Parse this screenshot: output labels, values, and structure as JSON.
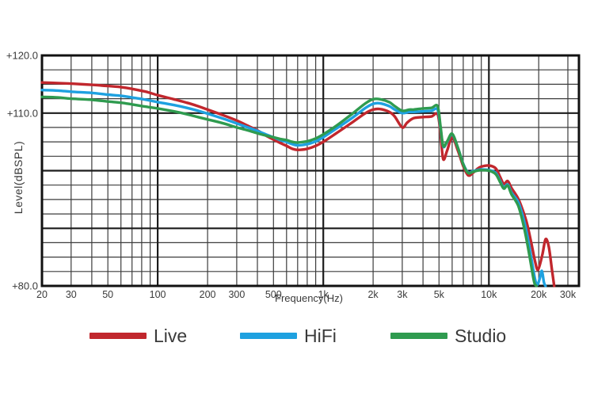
{
  "chart_data": {
    "type": "line",
    "x_scale": "log",
    "title": "",
    "xlabel": "Frequency(Hz)",
    "ylabel": "Level(dBSPL)",
    "xlim": [
      20,
      35000
    ],
    "ylim": [
      80,
      120
    ],
    "y_minor_step": 2.5,
    "y_major_lines": [
      90,
      100,
      110
    ],
    "y_tick_labels": [
      {
        "value": 120,
        "label": "+120.0"
      },
      {
        "value": 110,
        "label": "+110.0"
      },
      {
        "value": 80,
        "label": "+80.0"
      }
    ],
    "x_tick_labels": [
      {
        "value": 20,
        "label": "20"
      },
      {
        "value": 30,
        "label": "30"
      },
      {
        "value": 50,
        "label": "50"
      },
      {
        "value": 100,
        "label": "100"
      },
      {
        "value": 200,
        "label": "200"
      },
      {
        "value": 300,
        "label": "300"
      },
      {
        "value": 500,
        "label": "500"
      },
      {
        "value": 1000,
        "label": "1k"
      },
      {
        "value": 2000,
        "label": "2k"
      },
      {
        "value": 3000,
        "label": "3k"
      },
      {
        "value": 5000,
        "label": "5k"
      },
      {
        "value": 10000,
        "label": "10k"
      },
      {
        "value": 20000,
        "label": "20k"
      },
      {
        "value": 30000,
        "label": "30k"
      }
    ],
    "x_minor_lines": [
      30,
      40,
      50,
      60,
      70,
      80,
      90,
      100,
      200,
      300,
      400,
      500,
      600,
      700,
      800,
      900,
      1000,
      2000,
      3000,
      4000,
      5000,
      6000,
      7000,
      8000,
      9000,
      10000,
      20000,
      30000
    ],
    "x_major_lines": [
      100,
      1000,
      10000
    ],
    "grid_on": true,
    "grid_color": "#3c3c3c",
    "grid_major_color": "#1c1c1c",
    "axis_color": "#111111",
    "text_color": "#3a3a3a",
    "legend_position": "bottom",
    "series": [
      {
        "name": "Live",
        "color": "#c1272d",
        "points": [
          [
            20,
            115.3
          ],
          [
            25,
            115.2
          ],
          [
            30,
            115.1
          ],
          [
            40,
            114.9
          ],
          [
            50,
            114.7
          ],
          [
            60,
            114.5
          ],
          [
            70,
            114.2
          ],
          [
            85,
            113.7
          ],
          [
            100,
            113.1
          ],
          [
            125,
            112.4
          ],
          [
            150,
            111.8
          ],
          [
            175,
            111.2
          ],
          [
            200,
            110.6
          ],
          [
            250,
            109.6
          ],
          [
            300,
            108.7
          ],
          [
            350,
            107.8
          ],
          [
            400,
            107.0
          ],
          [
            450,
            106.1
          ],
          [
            500,
            105.4
          ],
          [
            550,
            104.8
          ],
          [
            600,
            104.3
          ],
          [
            650,
            103.8
          ],
          [
            700,
            103.6
          ],
          [
            800,
            103.8
          ],
          [
            900,
            104.3
          ],
          [
            1000,
            105.0
          ],
          [
            1200,
            106.5
          ],
          [
            1500,
            108.4
          ],
          [
            1800,
            110.0
          ],
          [
            2000,
            110.6
          ],
          [
            2200,
            110.7
          ],
          [
            2500,
            110.2
          ],
          [
            2700,
            109.4
          ],
          [
            3000,
            107.5
          ],
          [
            3200,
            108.3
          ],
          [
            3500,
            109.1
          ],
          [
            4000,
            109.3
          ],
          [
            4500,
            109.4
          ],
          [
            4900,
            109.8
          ],
          [
            5100,
            106.5
          ],
          [
            5300,
            102.0
          ],
          [
            5600,
            103.5
          ],
          [
            6000,
            105.8
          ],
          [
            6500,
            103.5
          ],
          [
            7000,
            100.8
          ],
          [
            7500,
            99.2
          ],
          [
            8000,
            99.6
          ],
          [
            8500,
            100.3
          ],
          [
            9000,
            100.7
          ],
          [
            10000,
            100.9
          ],
          [
            11000,
            100.4
          ],
          [
            11700,
            98.9
          ],
          [
            12300,
            97.7
          ],
          [
            13000,
            98.2
          ],
          [
            13700,
            97.0
          ],
          [
            15000,
            95.2
          ],
          [
            16000,
            93.2
          ],
          [
            17000,
            90.8
          ],
          [
            18000,
            87.6
          ],
          [
            19000,
            84.3
          ],
          [
            19800,
            82.8
          ],
          [
            21000,
            85.3
          ],
          [
            22000,
            88.1
          ],
          [
            23000,
            86.8
          ],
          [
            24000,
            83.0
          ],
          [
            24800,
            80.0
          ]
        ]
      },
      {
        "name": "HiFi",
        "color": "#1ea1e0",
        "points": [
          [
            20,
            114.0
          ],
          [
            25,
            113.9
          ],
          [
            30,
            113.7
          ],
          [
            40,
            113.5
          ],
          [
            50,
            113.2
          ],
          [
            60,
            113.0
          ],
          [
            70,
            112.7
          ],
          [
            85,
            112.3
          ],
          [
            100,
            111.9
          ],
          [
            125,
            111.4
          ],
          [
            150,
            110.9
          ],
          [
            175,
            110.4
          ],
          [
            200,
            109.9
          ],
          [
            250,
            109.0
          ],
          [
            300,
            108.2
          ],
          [
            350,
            107.5
          ],
          [
            400,
            106.9
          ],
          [
            450,
            106.3
          ],
          [
            500,
            105.8
          ],
          [
            550,
            105.3
          ],
          [
            600,
            105.0
          ],
          [
            650,
            104.6
          ],
          [
            700,
            104.4
          ],
          [
            800,
            104.6
          ],
          [
            900,
            105.1
          ],
          [
            1000,
            105.8
          ],
          [
            1200,
            107.3
          ],
          [
            1500,
            109.2
          ],
          [
            1800,
            110.9
          ],
          [
            2000,
            111.6
          ],
          [
            2200,
            111.7
          ],
          [
            2500,
            111.2
          ],
          [
            2700,
            110.6
          ],
          [
            3000,
            110.0
          ],
          [
            3300,
            110.2
          ],
          [
            3500,
            110.2
          ],
          [
            4000,
            110.3
          ],
          [
            4500,
            110.4
          ],
          [
            4900,
            110.6
          ],
          [
            5100,
            107.5
          ],
          [
            5300,
            104.2
          ],
          [
            5600,
            105.0
          ],
          [
            6000,
            106.3
          ],
          [
            6500,
            104.0
          ],
          [
            7000,
            101.2
          ],
          [
            7500,
            99.7
          ],
          [
            8000,
            99.9
          ],
          [
            8500,
            100.1
          ],
          [
            9000,
            100.2
          ],
          [
            10000,
            100.1
          ],
          [
            11000,
            99.6
          ],
          [
            11700,
            98.2
          ],
          [
            12300,
            97.1
          ],
          [
            13000,
            97.6
          ],
          [
            13700,
            96.2
          ],
          [
            15000,
            94.6
          ],
          [
            16000,
            92.2
          ],
          [
            17000,
            89.0
          ],
          [
            18000,
            85.0
          ],
          [
            19000,
            81.2
          ],
          [
            19600,
            80.2
          ],
          [
            20300,
            81.3
          ],
          [
            20900,
            82.6
          ],
          [
            21500,
            80.6
          ],
          [
            22000,
            80.0
          ]
        ]
      },
      {
        "name": "Studio",
        "color": "#2f9b4f",
        "points": [
          [
            20,
            112.8
          ],
          [
            25,
            112.7
          ],
          [
            30,
            112.5
          ],
          [
            40,
            112.3
          ],
          [
            50,
            112.0
          ],
          [
            60,
            111.8
          ],
          [
            70,
            111.5
          ],
          [
            85,
            111.1
          ],
          [
            100,
            110.8
          ],
          [
            125,
            110.3
          ],
          [
            150,
            109.8
          ],
          [
            175,
            109.3
          ],
          [
            200,
            108.9
          ],
          [
            250,
            108.2
          ],
          [
            300,
            107.5
          ],
          [
            350,
            107.0
          ],
          [
            400,
            106.5
          ],
          [
            450,
            106.1
          ],
          [
            500,
            105.8
          ],
          [
            550,
            105.5
          ],
          [
            600,
            105.3
          ],
          [
            650,
            105.0
          ],
          [
            700,
            104.9
          ],
          [
            800,
            105.1
          ],
          [
            900,
            105.6
          ],
          [
            1000,
            106.3
          ],
          [
            1200,
            107.8
          ],
          [
            1500,
            109.9
          ],
          [
            1800,
            111.7
          ],
          [
            2000,
            112.4
          ],
          [
            2200,
            112.4
          ],
          [
            2500,
            111.9
          ],
          [
            2700,
            111.2
          ],
          [
            3000,
            110.4
          ],
          [
            3300,
            110.6
          ],
          [
            3500,
            110.6
          ],
          [
            4000,
            110.8
          ],
          [
            4500,
            110.9
          ],
          [
            4900,
            111.2
          ],
          [
            5100,
            107.8
          ],
          [
            5300,
            104.3
          ],
          [
            5600,
            105.1
          ],
          [
            6000,
            106.4
          ],
          [
            6500,
            104.0
          ],
          [
            7000,
            101.1
          ],
          [
            7500,
            99.6
          ],
          [
            8000,
            99.8
          ],
          [
            8500,
            100.0
          ],
          [
            9000,
            100.1
          ],
          [
            10000,
            100.0
          ],
          [
            11000,
            99.4
          ],
          [
            11700,
            98.0
          ],
          [
            12300,
            96.9
          ],
          [
            13000,
            97.4
          ],
          [
            13700,
            95.9
          ],
          [
            15000,
            94.0
          ],
          [
            16000,
            91.2
          ],
          [
            17000,
            87.6
          ],
          [
            18000,
            83.6
          ],
          [
            18800,
            80.6
          ],
          [
            19400,
            80.0
          ]
        ]
      }
    ]
  }
}
